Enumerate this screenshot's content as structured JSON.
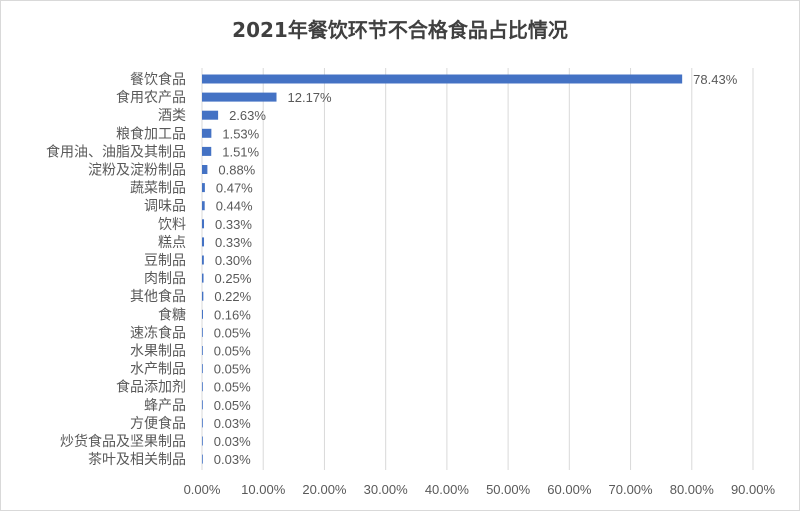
{
  "chart_data": {
    "type": "bar",
    "orientation": "horizontal",
    "title": "2021年餐饮环节不合格食品占比情况",
    "categories": [
      "餐饮食品",
      "食用农产品",
      "酒类",
      "粮食加工品",
      "食用油、油脂及其制品",
      "淀粉及淀粉制品",
      "蔬菜制品",
      "调味品",
      "饮料",
      "糕点",
      "豆制品",
      "肉制品",
      "其他食品",
      "食糖",
      "速冻食品",
      "水果制品",
      "水产制品",
      "食品添加剂",
      "蜂产品",
      "方便食品",
      "炒货食品及坚果制品",
      "茶叶及相关制品"
    ],
    "values": [
      78.43,
      12.17,
      2.63,
      1.53,
      1.51,
      0.88,
      0.47,
      0.44,
      0.33,
      0.33,
      0.3,
      0.25,
      0.22,
      0.16,
      0.05,
      0.05,
      0.05,
      0.05,
      0.05,
      0.03,
      0.03,
      0.03
    ],
    "value_labels": [
      "78.43%",
      "12.17%",
      "2.63%",
      "1.53%",
      "1.51%",
      "0.88%",
      "0.47%",
      "0.44%",
      "0.33%",
      "0.33%",
      "0.30%",
      "0.25%",
      "0.22%",
      "0.16%",
      "0.05%",
      "0.05%",
      "0.05%",
      "0.05%",
      "0.05%",
      "0.03%",
      "0.03%",
      "0.03%"
    ],
    "xlim": [
      0,
      90
    ],
    "xticks": [
      0,
      10,
      20,
      30,
      40,
      50,
      60,
      70,
      80,
      90
    ],
    "xtick_labels": [
      "0.00%",
      "10.00%",
      "20.00%",
      "30.00%",
      "40.00%",
      "50.00%",
      "60.00%",
      "70.00%",
      "80.00%",
      "90.00%"
    ],
    "grid": true,
    "bar_color": "#4472c4",
    "grid_color": "#d9d9d9"
  }
}
